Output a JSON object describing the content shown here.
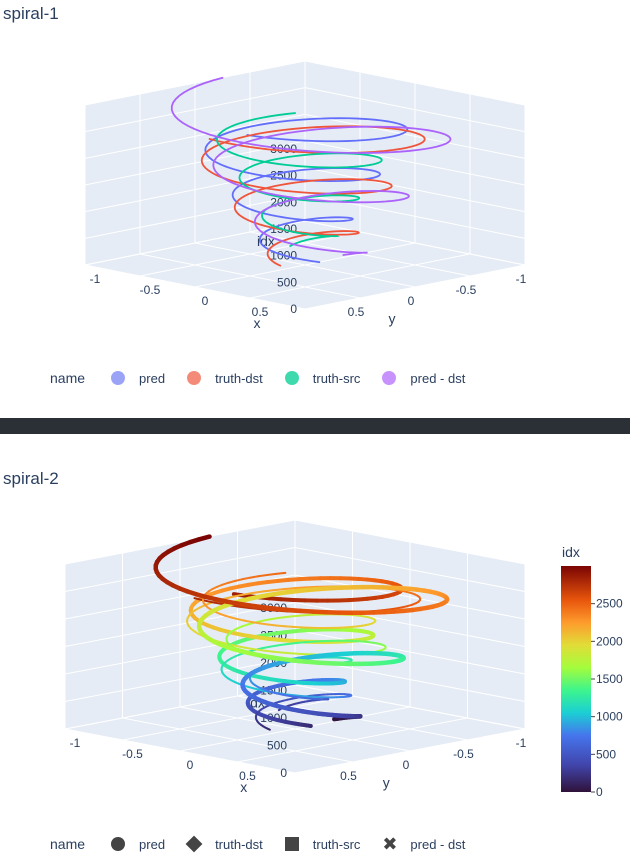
{
  "chart_data": [
    {
      "type": "scatter3d-line",
      "title": "spiral-1",
      "axes": {
        "x": "x",
        "y": "y",
        "z": "idx"
      },
      "z_ticks": [
        "0",
        "500",
        "1000",
        "1500",
        "2000",
        "2500",
        "3000"
      ],
      "x_ticks": [
        "-1",
        "-0.5",
        "0",
        "0.5"
      ],
      "y_ticks": [
        "-1",
        "-0.5",
        "0",
        "0.5"
      ],
      "zlim": [
        0,
        3000
      ],
      "legend_title": "name",
      "legend_position": "bottom",
      "series": [
        {
          "name": "pred",
          "color": "#636efa"
        },
        {
          "name": "truth-dst",
          "color": "#ef553b"
        },
        {
          "name": "truth-src",
          "color": "#00cc96"
        },
        {
          "name": "pred - dst",
          "color": "#ab63fa"
        }
      ]
    },
    {
      "type": "scatter3d-line",
      "title": "spiral-2",
      "axes": {
        "x": "x",
        "y": "y",
        "z": "idx"
      },
      "z_ticks": [
        "0",
        "500",
        "1000",
        "1500",
        "2000",
        "2500",
        "3000"
      ],
      "x_ticks": [
        "-1",
        "-0.5",
        "0",
        "0.5"
      ],
      "y_ticks": [
        "-1",
        "-0.5",
        "0",
        "0.5"
      ],
      "zlim": [
        0,
        3000
      ],
      "legend_title": "name",
      "legend_position": "bottom",
      "colorbar": {
        "title": "idx",
        "ticks": [
          "0",
          "500",
          "1000",
          "1500",
          "2000",
          "2500"
        ],
        "range": [
          0,
          3000
        ]
      },
      "series": [
        {
          "name": "pred",
          "marker": "circle"
        },
        {
          "name": "truth-dst",
          "marker": "diamond"
        },
        {
          "name": "truth-src",
          "marker": "square"
        },
        {
          "name": "pred - dst",
          "marker": "x"
        }
      ]
    }
  ]
}
